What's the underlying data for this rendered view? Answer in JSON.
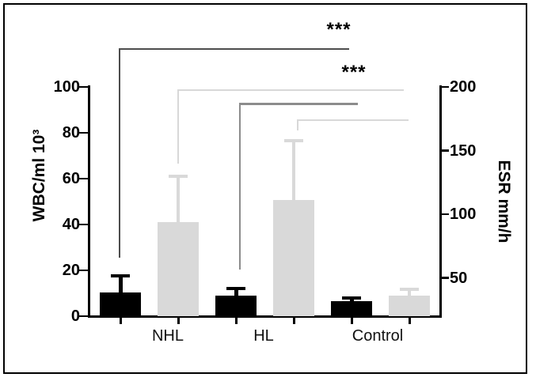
{
  "chart_data": {
    "type": "bar",
    "title": "",
    "categories": [
      "NHL",
      "HL",
      "Control"
    ],
    "series": [
      {
        "name": "WBC",
        "axis": "left",
        "color": "#000000",
        "values": [
          10.3,
          9.0,
          6.4
        ],
        "sd": [
          7.3,
          3.1,
          1.4
        ]
      },
      {
        "name": "ESR",
        "axis": "right",
        "color": "#d9d9d9",
        "values": [
          94,
          111,
          36
        ],
        "sd": [
          36,
          47,
          5
        ]
      }
    ],
    "left_axis": {
      "title": "WBC/ml 10³",
      "min": 0,
      "max": 100,
      "ticks": [
        0,
        20,
        40,
        60,
        80,
        100
      ]
    },
    "right_axis": {
      "title": "ESR mm/h",
      "min": 20,
      "max": 200,
      "ticks": [
        50,
        100,
        150,
        200
      ]
    },
    "legend": "none",
    "grid": false,
    "axis_color": "#000000",
    "background": "#ffffff",
    "border_color": "#000000",
    "significance": [
      {
        "label": "***",
        "comparison": "NHL WBC vs Control",
        "line_color": "#4d4d4d"
      },
      {
        "label": "",
        "comparison": "NHL ESR vs Control",
        "line_color": "#d8d8d8"
      },
      {
        "label": "***",
        "comparison": "HL WBC vs Control",
        "line_color": "#8c8c8c"
      },
      {
        "label": "",
        "comparison": "HL ESR vs Control",
        "line_color": "#d8d8d8"
      }
    ]
  }
}
